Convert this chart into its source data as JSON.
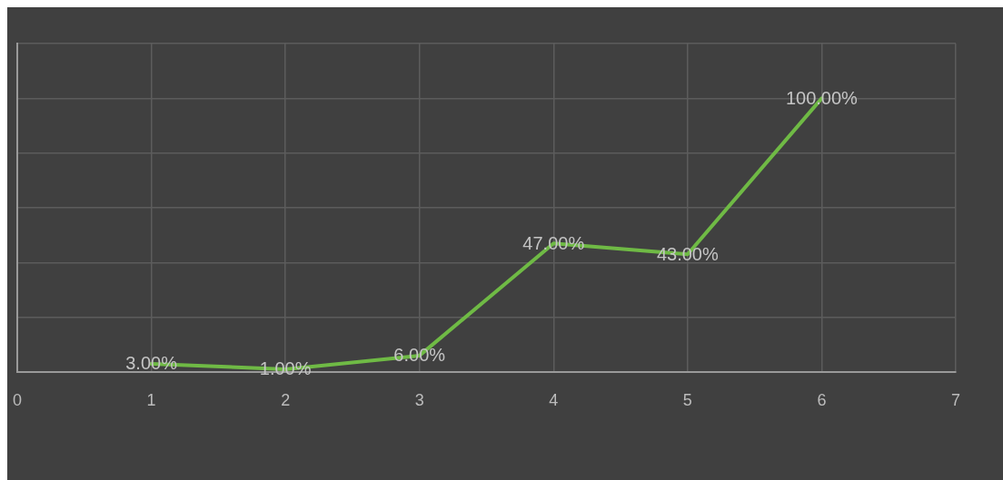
{
  "chart_data": {
    "type": "line",
    "x": [
      1,
      2,
      3,
      4,
      5,
      6
    ],
    "values": [
      3,
      1,
      6,
      47,
      43,
      100
    ],
    "value_labels": [
      "3.00%",
      "1.00%",
      "6.00%",
      "47.00%",
      "43.00%",
      "100.00%"
    ],
    "color": "#6fba45",
    "marker": "none",
    "xlim": [
      0,
      7
    ],
    "xticks": [
      0,
      1,
      2,
      3,
      4,
      5,
      6,
      7
    ],
    "ylim": [
      0,
      120
    ],
    "yticks": [
      {
        "value": 0,
        "label": null
      },
      {
        "value": 20,
        "label": null
      },
      {
        "value": 40,
        "label": null
      },
      {
        "value": 60,
        "label": null
      },
      {
        "value": 80,
        "label": null
      },
      {
        "value": 100,
        "label": null
      },
      {
        "value": 120,
        "label": null
      }
    ],
    "grid": true,
    "tick_labels": "x"
  }
}
